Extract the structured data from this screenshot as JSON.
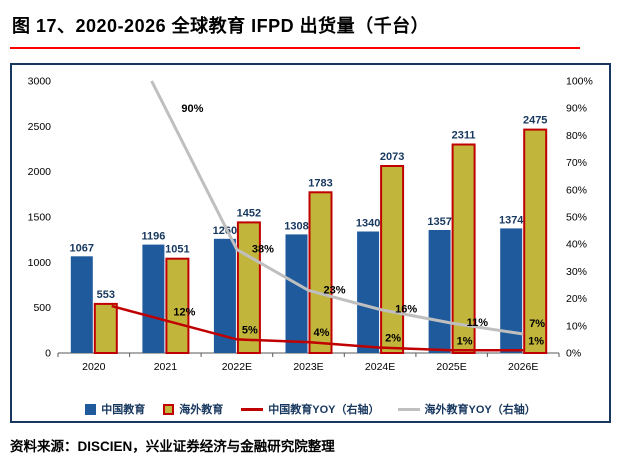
{
  "figure": {
    "title": "图 17、2020-2026 全球教育 IFPD 出货量（千台）",
    "source": "资料来源：DISCIEN，兴业证券经济与金融研究院整理"
  },
  "colors": {
    "china_bar": "#1E5A9C",
    "overseas_bar_fill": "#C2B53B",
    "overseas_bar_border": "#C00000",
    "china_yoy_line": "#C00000",
    "overseas_yoy_line": "#BFBFBF",
    "frame": "#17375E",
    "title_underline": "#FF0000",
    "bar_label": "#17375E",
    "axis_text": "#000000"
  },
  "chart_data": {
    "type": "bar+line",
    "title": "2020-2026 全球教育 IFPD 出货量（千台）",
    "categories": [
      "2020",
      "2021",
      "2022E",
      "2023E",
      "2024E",
      "2025E",
      "2026E"
    ],
    "bar_series": [
      {
        "name": "中国教育",
        "axis": "left",
        "values": [
          1067,
          1196,
          1260,
          1308,
          1340,
          1357,
          1374
        ]
      },
      {
        "name": "海外教育",
        "axis": "left",
        "values": [
          553,
          1051,
          1452,
          1783,
          2073,
          2311,
          2475
        ]
      }
    ],
    "line_series": [
      {
        "name": "海外教育YOY（右轴）",
        "axis": "right",
        "values": [
          null,
          90,
          38,
          23,
          16,
          11,
          7
        ],
        "labels": [
          null,
          "90%",
          "38%",
          "23%",
          "16%",
          "11%",
          "7%"
        ],
        "extend_back": true
      },
      {
        "name": "中国教育YOY（右轴）",
        "axis": "right",
        "values": [
          null,
          12,
          5,
          4,
          2,
          1,
          1
        ],
        "labels": [
          null,
          "12%",
          "5%",
          "4%",
          "2%",
          "1%",
          "1%"
        ],
        "extend_back": true
      }
    ],
    "left_axis": {
      "min": 0,
      "max": 3000,
      "step": 500,
      "tick_labels": [
        "0",
        "500",
        "1000",
        "1500",
        "2000",
        "2500",
        "3000"
      ]
    },
    "right_axis": {
      "min": 0,
      "max": 100,
      "step": 10,
      "tick_labels": [
        "0%",
        "10%",
        "20%",
        "30%",
        "40%",
        "50%",
        "60%",
        "70%",
        "80%",
        "90%",
        "100%"
      ]
    },
    "legend": [
      "中国教育",
      "海外教育",
      "中国教育YOY（右轴）",
      "海外教育YOY（右轴）"
    ],
    "legend_position": "bottom",
    "grid": false
  }
}
